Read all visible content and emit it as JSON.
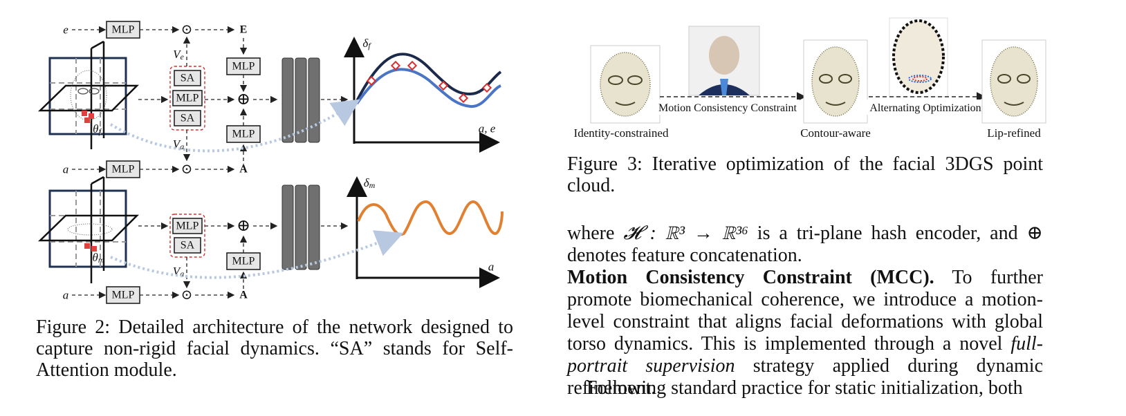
{
  "figure2": {
    "inputs": {
      "top_e": "e",
      "top_a": "a",
      "bottom_a_top": "a",
      "bottom_a_bottom": "a"
    },
    "mlp": "MLP",
    "sa": "SA",
    "odot": "⊙",
    "oplus": "⊕",
    "outputs": {
      "E": "E",
      "A": "A"
    },
    "vars": {
      "Ve": "V",
      "Ve_sub": "e",
      "Va": "V",
      "Va_sub": "a",
      "theta_f": "θ",
      "theta_f_sub": "f",
      "theta_m": "θ",
      "theta_m_sub": "m"
    },
    "plot_top": {
      "ylabel": "δ",
      "ylabel_sub": "f",
      "xlabel": "a, e"
    },
    "plot_bottom": {
      "ylabel": "δ",
      "ylabel_sub": "m",
      "xlabel": "a"
    },
    "caption": "Figure 2: Detailed architecture of the network designed to capture non-rigid facial dynamics. “SA” stands for Self-Attention module.",
    "colors": {
      "dark_curve": "#1b2a4a",
      "light_curve": "#4a74c4",
      "orange_curve": "#e08030",
      "marker": "#d83030",
      "plane": "#1f3050"
    }
  },
  "figure3": {
    "stages": [
      "Identity-constrained",
      "Contour-aware",
      "Lip-refined"
    ],
    "transitions": [
      "Motion Consistency Constraint",
      "Alternating Optimization"
    ],
    "caption": "Figure 3: Iterative optimization of the facial 3DGS point cloud."
  },
  "text": {
    "para1_pre": "where ",
    "para1_math": "𝓗 : ℝ³ → ℝ³⁶",
    "para1_post": " is a tri-plane hash encoder, and ⊕ denotes feature concatenation.",
    "mcc_heading": "Motion Consistency Constraint (MCC).",
    "mcc_body_1": " To further promote biomechanical coherence, we introduce a motion-level constraint that aligns facial deformations with global torso dynamics. This is implemented through a novel ",
    "mcc_emph": "full-portrait supervision",
    "mcc_body_2": " strategy applied during dynamic refinement.",
    "para_last": "Following standard practice for static initialization, both"
  }
}
